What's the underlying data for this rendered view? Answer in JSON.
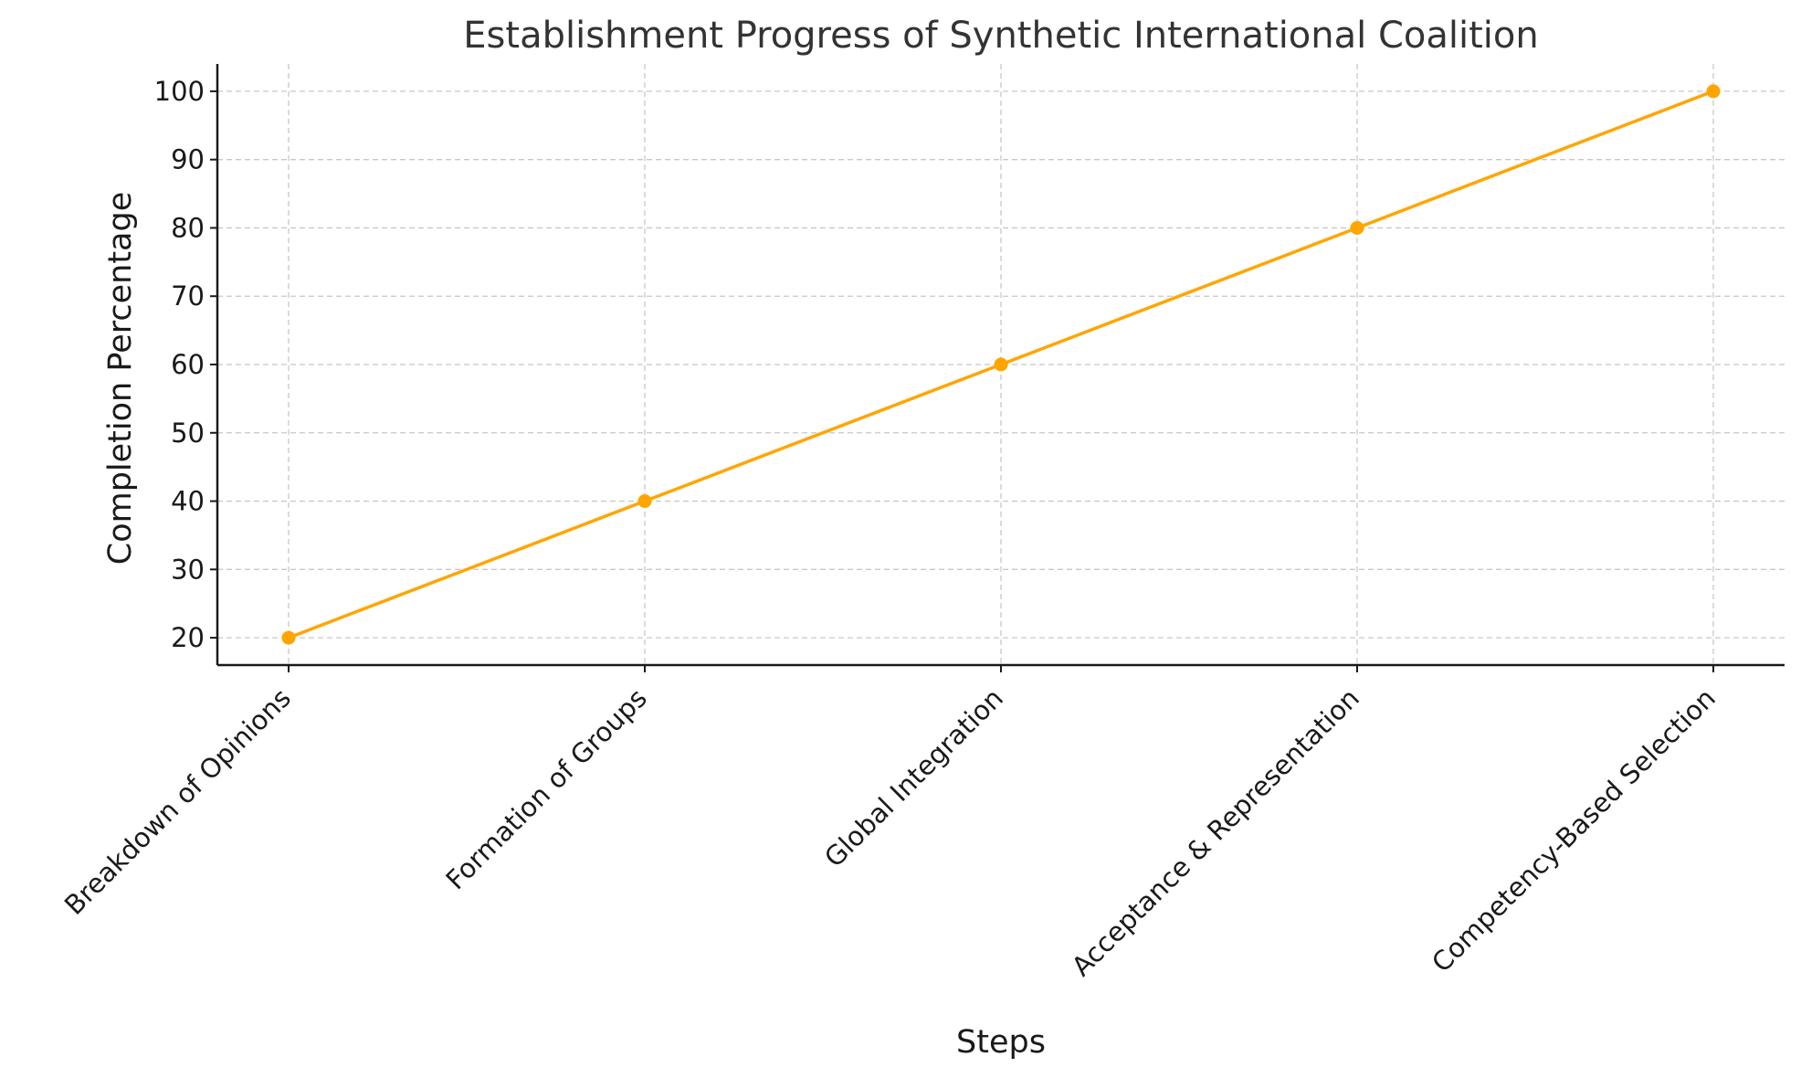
{
  "chart_data": {
    "type": "line",
    "title": "Establishment Progress of Synthetic International Coalition",
    "xlabel": "Steps",
    "ylabel": "Completion Percentage",
    "categories": [
      "Breakdown of Opinions",
      "Formation of Groups",
      "Global Integration",
      "Acceptance & Representation",
      "Competency-Based Selection"
    ],
    "series": [
      {
        "values": [
          20,
          40,
          60,
          80,
          100
        ],
        "color": "#FFA500",
        "marker": "circle"
      }
    ],
    "yticks": [
      20,
      30,
      40,
      50,
      60,
      70,
      80,
      90,
      100
    ],
    "ylim": [
      16,
      104
    ],
    "grid": true,
    "legend": "none"
  }
}
